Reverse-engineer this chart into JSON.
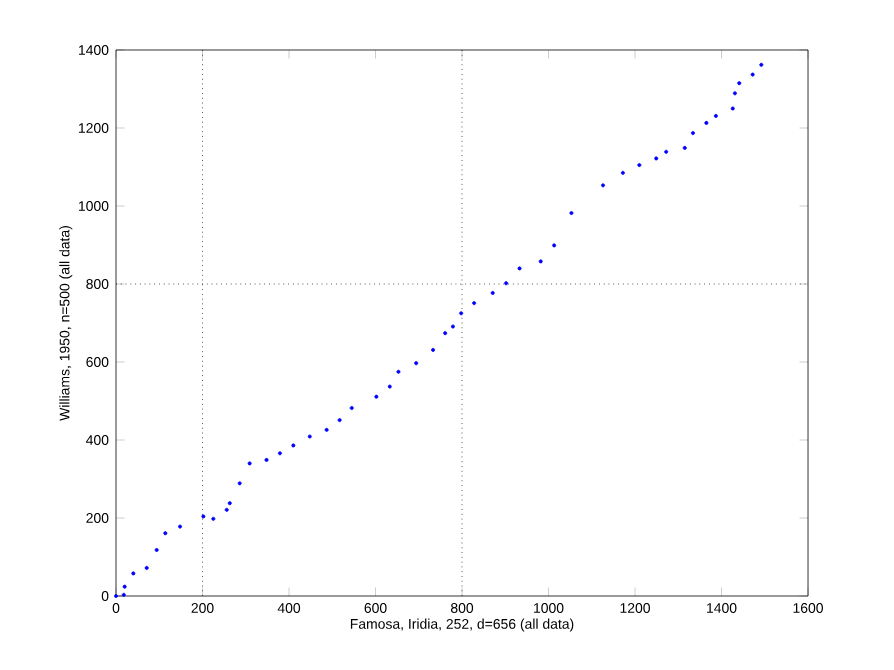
{
  "chart_data": {
    "type": "scatter",
    "xlabel": "Famosa, Iridia, 252, d=656 (all data)",
    "ylabel": "Williams, 1950, n=500 (all data)",
    "xlim": [
      0,
      1600
    ],
    "ylim": [
      0,
      1400
    ],
    "xticks": [
      0,
      200,
      400,
      600,
      800,
      1000,
      1200,
      1400,
      1600
    ],
    "yticks": [
      0,
      200,
      400,
      600,
      800,
      1000,
      1200,
      1400
    ],
    "ref_lines": [
      {
        "axis": "x",
        "value": 200,
        "line_style": "dotted"
      },
      {
        "axis": "x",
        "value": 800,
        "line_style": "dotted"
      },
      {
        "axis": "y",
        "value": 800,
        "line_style": "dotted"
      }
    ],
    "series": [
      {
        "color": "#0000ff",
        "x": [
          0,
          18,
          20,
          40,
          71,
          94,
          114,
          148,
          202,
          225,
          256,
          263,
          286,
          309,
          348,
          379,
          410,
          448,
          487,
          517,
          545,
          602,
          633,
          653,
          694,
          733,
          761,
          779,
          798,
          828,
          871,
          902,
          933,
          982,
          1013,
          1053,
          1126,
          1172,
          1210,
          1249,
          1272,
          1315,
          1334,
          1365,
          1387,
          1426,
          1431,
          1441,
          1472,
          1492
        ],
        "values": [
          0,
          3,
          24,
          58,
          72,
          118,
          161,
          178,
          204,
          198,
          221,
          238,
          289,
          340,
          349,
          366,
          386,
          409,
          426,
          451,
          482,
          511,
          537,
          575,
          597,
          631,
          674,
          691,
          725,
          751,
          777,
          802,
          840,
          858,
          899,
          982,
          1053,
          1085,
          1105,
          1122,
          1139,
          1149,
          1187,
          1213,
          1231,
          1250,
          1289,
          1315,
          1337,
          1362
        ]
      }
    ]
  }
}
